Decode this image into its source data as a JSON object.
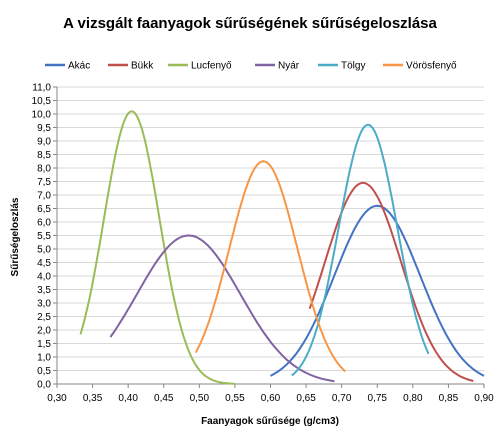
{
  "chart_data": {
    "type": "line",
    "title": "A vizsgált faanyagok sűrűségének sűrűségeloszlása",
    "xlabel": "Faanyagok sűrűsége (g/cm3)",
    "ylabel": "Sűrűségeloszlás",
    "xlim": [
      0.3,
      0.9
    ],
    "ylim": [
      0,
      11
    ],
    "x_ticks": [
      "0,30",
      "0,35",
      "0,40",
      "0,45",
      "0,50",
      "0,55",
      "0,60",
      "0,65",
      "0,70",
      "0,75",
      "0,80",
      "0,85",
      "0,90"
    ],
    "y_ticks": [
      "0,0",
      "0,5",
      "1,0",
      "1,5",
      "2,0",
      "2,5",
      "3,0",
      "3,5",
      "4,0",
      "4,5",
      "5,0",
      "5,5",
      "6,0",
      "6,5",
      "7,0",
      "7,5",
      "8,0",
      "8,5",
      "9,0",
      "9,5",
      "10,0",
      "10,5",
      "11,0"
    ],
    "grid": "horizontal",
    "legend_position": "top",
    "series": [
      {
        "name": "Akác",
        "color": "#4472C4",
        "mean": 0.75,
        "sd": 0.0605,
        "peak": 6.6,
        "x_start": 0.6,
        "x_end": 0.9
      },
      {
        "name": "Bükk",
        "color": "#C0504D",
        "mean": 0.73,
        "sd": 0.0535,
        "peak": 7.45,
        "x_start": 0.655,
        "x_end": 0.885
      },
      {
        "name": "Lucfenyő",
        "color": "#9BBB59",
        "mean": 0.405,
        "sd": 0.039,
        "peak": 10.1,
        "x_start": 0.333,
        "x_end": 0.55
      },
      {
        "name": "Nyár",
        "color": "#8064A2",
        "mean": 0.485,
        "sd": 0.0725,
        "peak": 5.5,
        "x_start": 0.375,
        "x_end": 0.69
      },
      {
        "name": "Tölgy",
        "color": "#4BACC6",
        "mean": 0.737,
        "sd": 0.041,
        "peak": 9.6,
        "x_start": 0.63,
        "x_end": 0.822
      },
      {
        "name": "Vörösfenyő",
        "color": "#F79646",
        "mean": 0.59,
        "sd": 0.048,
        "peak": 8.25,
        "x_start": 0.495,
        "x_end": 0.705
      }
    ]
  }
}
